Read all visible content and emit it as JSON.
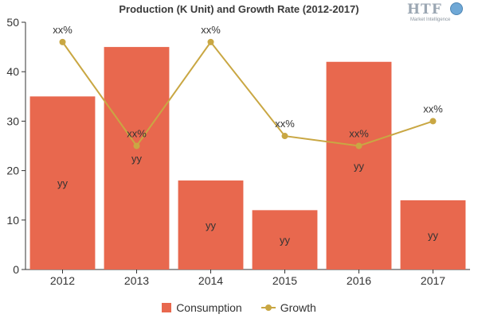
{
  "title": "Production (K Unit) and Growth Rate (2012-2017)",
  "logo": {
    "main": "HTF",
    "sub": "Market Intelligence"
  },
  "colors": {
    "bar": "#e8684e",
    "line": "#c9a743",
    "axis": "#333333",
    "grid": "#d9d9d9"
  },
  "legend": {
    "consumption": "Consumption",
    "growth": "Growth"
  },
  "chart_data": {
    "type": "bar",
    "title": "Production (K Unit) and Growth Rate (2012-2017)",
    "categories": [
      "2012",
      "2013",
      "2014",
      "2015",
      "2016",
      "2017"
    ],
    "ylim": [
      0,
      50
    ],
    "yticks": [
      0,
      10,
      20,
      30,
      40,
      50
    ],
    "series": [
      {
        "name": "Consumption",
        "type": "bar",
        "values": [
          35,
          45,
          18,
          12,
          42,
          14
        ],
        "labels": [
          "yy",
          "yy",
          "yy",
          "yy",
          "yy",
          "yy"
        ]
      },
      {
        "name": "Growth",
        "type": "line",
        "values": [
          46,
          25,
          46,
          27,
          25,
          30
        ],
        "labels": [
          "xx%",
          "xx%",
          "xx%",
          "xx%",
          "xx%",
          "xx%"
        ]
      }
    ],
    "legend_position": "bottom",
    "grid": false
  }
}
